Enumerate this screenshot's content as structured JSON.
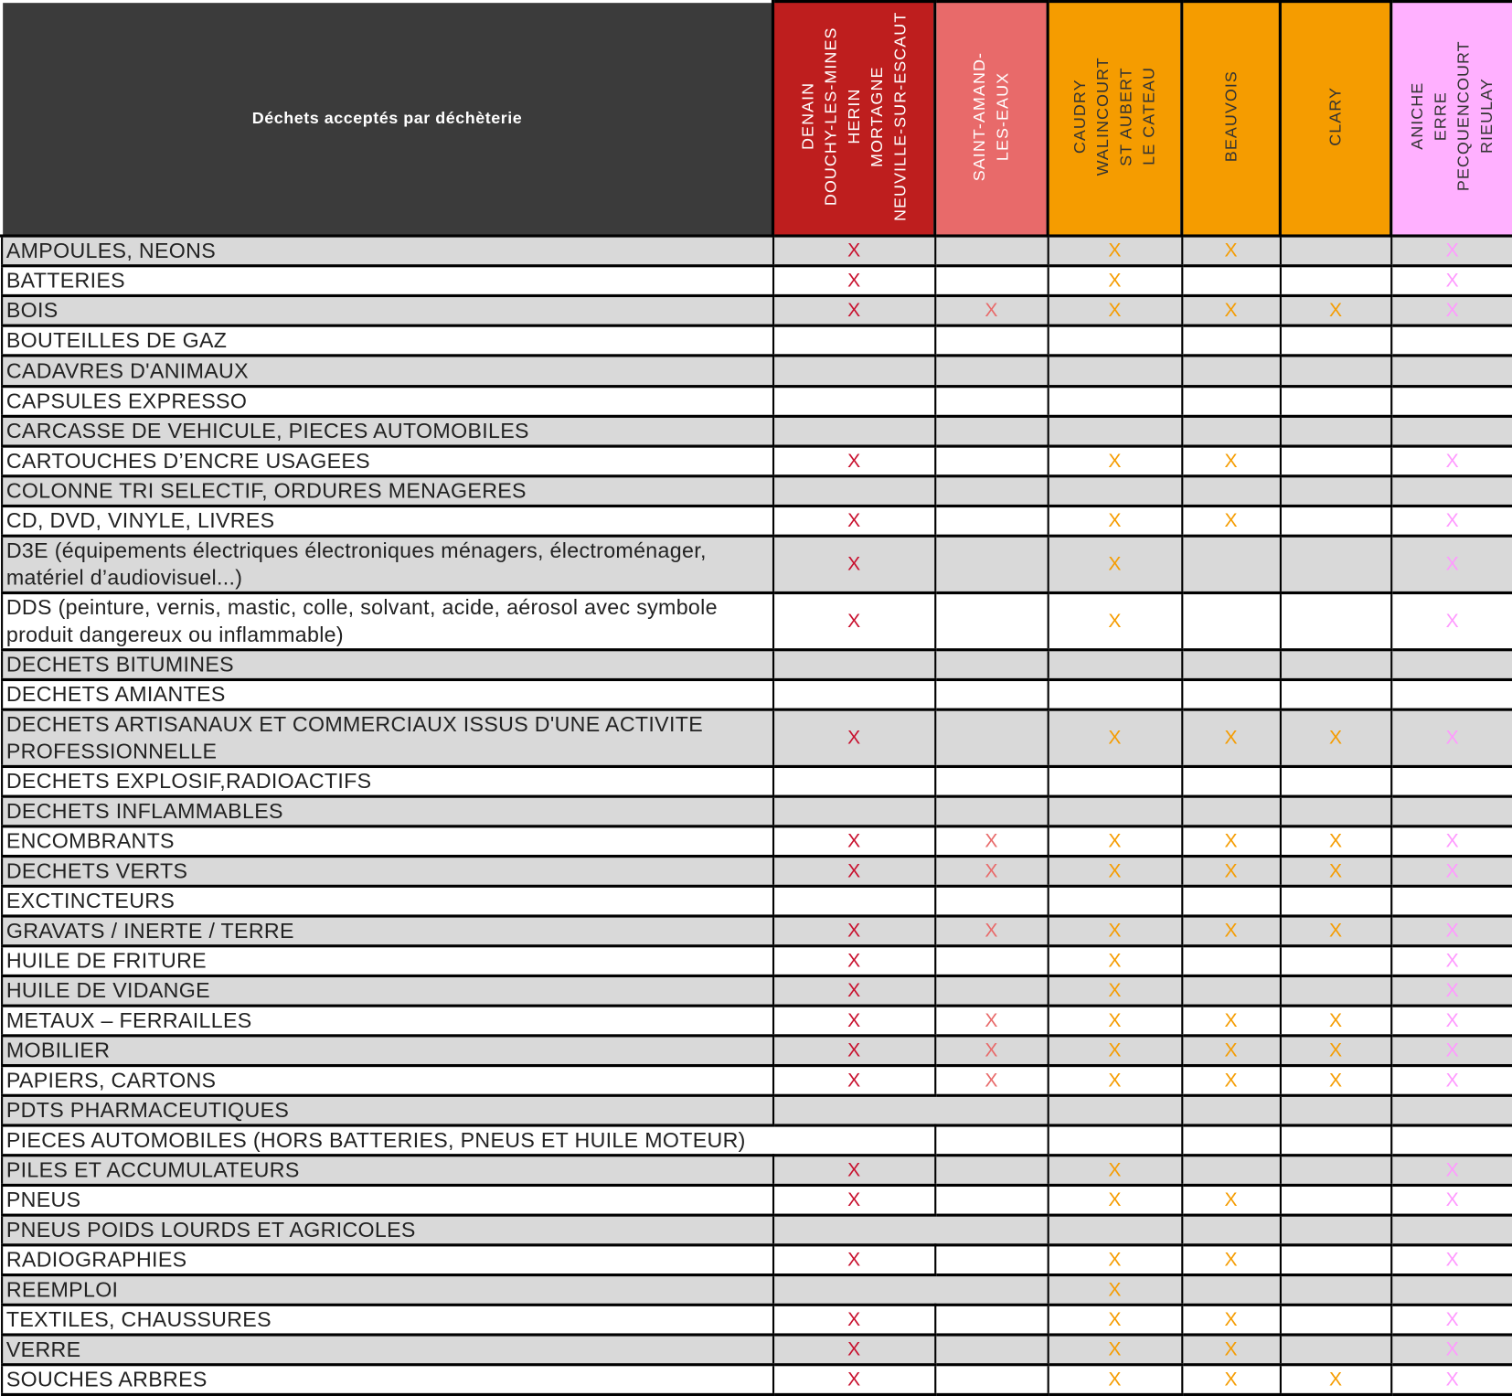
{
  "header": {
    "title": "Déchets acceptés par déchèterie",
    "columns": [
      {
        "label": "DENAIN\nDOUCHY-LES-MINES\nHERIN\nMORTAGNE\nNEUVILLE-SUR-ESCAUT",
        "bg": "#be1e1e",
        "fg": "#ffffff",
        "mark_color": "#c8102e"
      },
      {
        "label": "SAINT-AMAND-\nLES-EAUX",
        "bg": "#e86a6a",
        "fg": "#ffffff",
        "mark_color": "#e86a6a"
      },
      {
        "label": "CAUDRY\nWALINCOURT\nST AUBERT\nLE CATEAU",
        "bg": "#f59c00",
        "fg": "#333333",
        "mark_color": "#f59c00"
      },
      {
        "label": "BEAUVOIS",
        "bg": "#f59c00",
        "fg": "#333333",
        "mark_color": "#f59c00"
      },
      {
        "label": "CLARY",
        "bg": "#f59c00",
        "fg": "#333333",
        "mark_color": "#f59c00"
      },
      {
        "label": "ANICHE\nERRE\nPECQUENCOURT\nRIEULAY",
        "bg": "#ffb0ff",
        "fg": "#333333",
        "mark_color": "#ff99ff"
      }
    ]
  },
  "mark_symbol": "X",
  "rows": [
    {
      "label": "AMPOULES, NEONS",
      "marks": [
        1,
        0,
        1,
        1,
        0,
        1
      ]
    },
    {
      "label": "BATTERIES",
      "marks": [
        1,
        0,
        1,
        0,
        0,
        1
      ]
    },
    {
      "label": "BOIS",
      "marks": [
        1,
        1,
        1,
        1,
        1,
        1
      ]
    },
    {
      "label": "BOUTEILLES DE GAZ",
      "marks": [
        0,
        0,
        0,
        0,
        0,
        0
      ]
    },
    {
      "label": "CADAVRES D'ANIMAUX",
      "marks": [
        0,
        0,
        0,
        0,
        0,
        0
      ]
    },
    {
      "label": "CAPSULES EXPRESSO",
      "marks": [
        0,
        0,
        0,
        0,
        0,
        0
      ]
    },
    {
      "label": "CARCASSE DE VEHICULE, PIECES AUTOMOBILES",
      "marks": [
        0,
        0,
        0,
        0,
        0,
        0
      ]
    },
    {
      "label": "CARTOUCHES D’ENCRE USAGEES",
      "marks": [
        1,
        0,
        1,
        1,
        0,
        1
      ]
    },
    {
      "label": "COLONNE TRI SELECTIF, ORDURES MENAGERES",
      "marks": [
        0,
        0,
        0,
        0,
        0,
        0
      ]
    },
    {
      "label": "CD, DVD, VINYLE, LIVRES",
      "marks": [
        1,
        0,
        1,
        1,
        0,
        1
      ]
    },
    {
      "label": "D3E (équipements électriques électroniques ménagers, électroménager,\nmatériel d’audiovisuel...)",
      "marks": [
        1,
        0,
        1,
        0,
        0,
        1
      ]
    },
    {
      "label": "DDS (peinture, vernis, mastic, colle, solvant, acide, aérosol avec symbole\nproduit dangereux ou inflammable)",
      "marks": [
        1,
        0,
        1,
        0,
        0,
        1
      ]
    },
    {
      "label": "DECHETS BITUMINES",
      "marks": [
        0,
        0,
        0,
        0,
        0,
        0
      ]
    },
    {
      "label": "DECHETS AMIANTES",
      "marks": [
        0,
        0,
        0,
        0,
        0,
        0
      ]
    },
    {
      "label": "DECHETS ARTISANAUX ET COMMERCIAUX ISSUS D'UNE ACTIVITE\nPROFESSIONNELLE",
      "marks": [
        1,
        0,
        1,
        1,
        1,
        1
      ]
    },
    {
      "label": "DECHETS EXPLOSIF,RADIOACTIFS",
      "marks": [
        0,
        0,
        0,
        0,
        0,
        0
      ]
    },
    {
      "label": "DECHETS INFLAMMABLES",
      "marks": [
        0,
        0,
        0,
        0,
        0,
        0
      ]
    },
    {
      "label": "ENCOMBRANTS",
      "marks": [
        1,
        1,
        1,
        1,
        1,
        1
      ]
    },
    {
      "label": "DECHETS VERTS",
      "marks": [
        1,
        1,
        1,
        1,
        1,
        1
      ]
    },
    {
      "label": "EXCTINCTEURS",
      "marks": [
        0,
        0,
        0,
        0,
        0,
        0
      ]
    },
    {
      "label": "GRAVATS / INERTE / TERRE",
      "marks": [
        1,
        1,
        1,
        1,
        1,
        1
      ]
    },
    {
      "label": "HUILE DE FRITURE",
      "marks": [
        1,
        0,
        1,
        0,
        0,
        1
      ]
    },
    {
      "label": "HUILE DE VIDANGE",
      "marks": [
        1,
        0,
        1,
        0,
        0,
        1
      ]
    },
    {
      "label": "METAUX – FERRAILLES",
      "marks": [
        1,
        1,
        1,
        1,
        1,
        1
      ]
    },
    {
      "label": "MOBILIER",
      "marks": [
        1,
        1,
        1,
        1,
        1,
        1
      ]
    },
    {
      "label": "PAPIERS, CARTONS",
      "marks": [
        1,
        1,
        1,
        1,
        1,
        1
      ]
    },
    {
      "label": "PDTS PHARMACEUTIQUES",
      "marks": [
        0,
        0,
        0,
        0,
        0,
        0
      ],
      "merge": "c1c2"
    },
    {
      "label": "PIECES AUTOMOBILES (HORS BATTERIES, PNEUS ET HUILE MOTEUR)",
      "marks": [
        0,
        0,
        0,
        0,
        0,
        0
      ],
      "merge": "labelc1"
    },
    {
      "label": "PILES ET ACCUMULATEURS",
      "marks": [
        1,
        0,
        1,
        0,
        0,
        1
      ]
    },
    {
      "label": "PNEUS",
      "marks": [
        1,
        0,
        1,
        1,
        0,
        1
      ]
    },
    {
      "label": "PNEUS POIDS LOURDS ET AGRICOLES",
      "marks": [
        0,
        0,
        0,
        0,
        0,
        0
      ],
      "merge": "c1c2"
    },
    {
      "label": "RADIOGRAPHIES",
      "marks": [
        1,
        0,
        1,
        1,
        0,
        1
      ]
    },
    {
      "label": "REEMPLOI",
      "marks": [
        0,
        0,
        1,
        0,
        0,
        0
      ],
      "merge": "c1c2"
    },
    {
      "label": "TEXTILES, CHAUSSURES",
      "marks": [
        1,
        0,
        1,
        1,
        0,
        1
      ]
    },
    {
      "label": "VERRE",
      "marks": [
        1,
        0,
        1,
        1,
        0,
        1
      ]
    },
    {
      "label": "SOUCHES ARBRES",
      "marks": [
        1,
        0,
        1,
        1,
        1,
        1
      ]
    }
  ]
}
